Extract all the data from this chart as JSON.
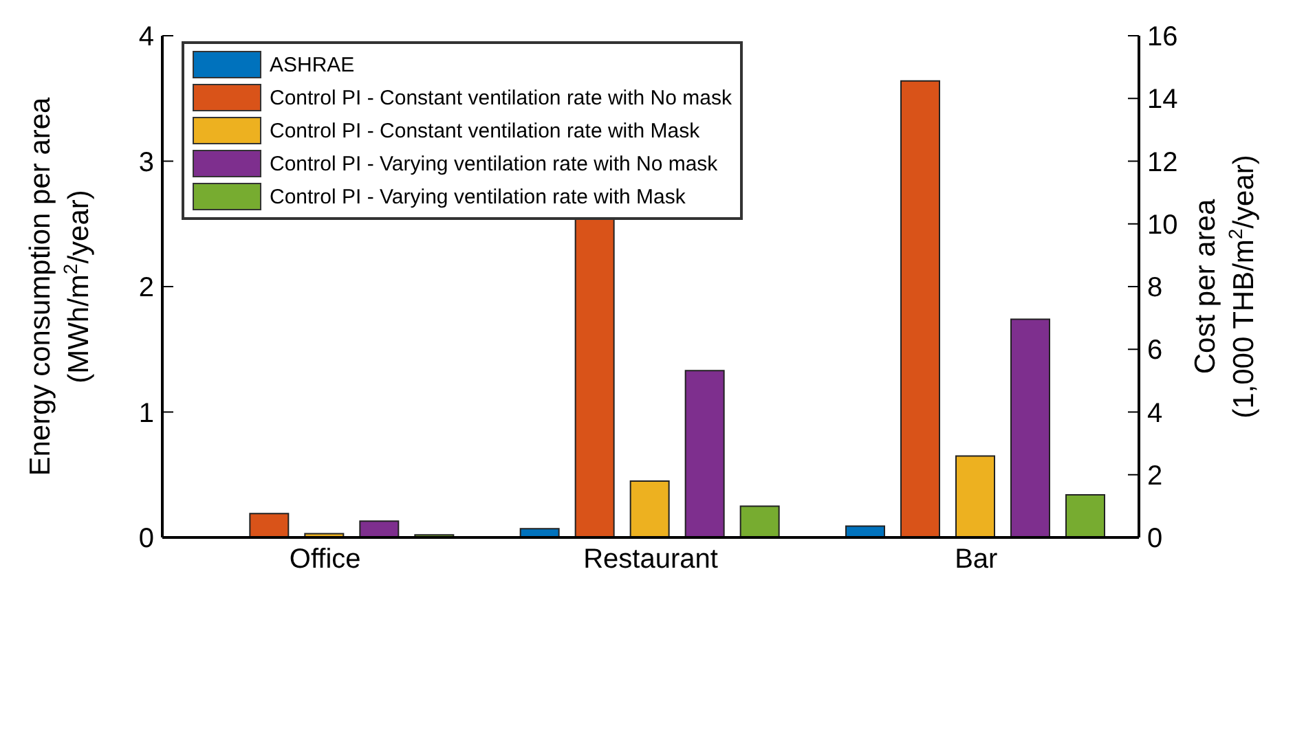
{
  "chart_data": {
    "type": "bar",
    "categories": [
      "Office",
      "Restaurant",
      "Bar"
    ],
    "series": [
      {
        "name": "ASHRAE",
        "color": "#0072bd",
        "values": [
          null,
          0.07,
          0.09
        ]
      },
      {
        "name": "Control PI - Constant ventilation rate with No mask",
        "color": "#d95319",
        "values": [
          0.19,
          2.55,
          3.64
        ]
      },
      {
        "name": "Control PI - Constant ventilation rate with Mask",
        "color": "#edb120",
        "values": [
          0.03,
          0.45,
          0.65
        ]
      },
      {
        "name": "Control PI - Varying ventilation rate with No mask",
        "color": "#7e2f8e",
        "values": [
          0.13,
          1.33,
          1.74
        ]
      },
      {
        "name": "Control PI - Varying ventilation rate with Mask",
        "color": "#77ac30",
        "values": [
          0.02,
          0.25,
          0.34
        ]
      }
    ],
    "ylabel": "Energy consumption per area\n(MWh/m$^{2}$/year)",
    "y2label": "Cost per area\n(1,000 THB/m$^{2}$/year)",
    "ylim": [
      0,
      4
    ],
    "yticks": [
      0,
      1,
      2,
      3,
      4
    ],
    "y2lim": [
      0,
      16
    ],
    "y2ticks": [
      0,
      2,
      4,
      6,
      8,
      10,
      12,
      14,
      16
    ],
    "legend": "top left",
    "grid": false
  }
}
